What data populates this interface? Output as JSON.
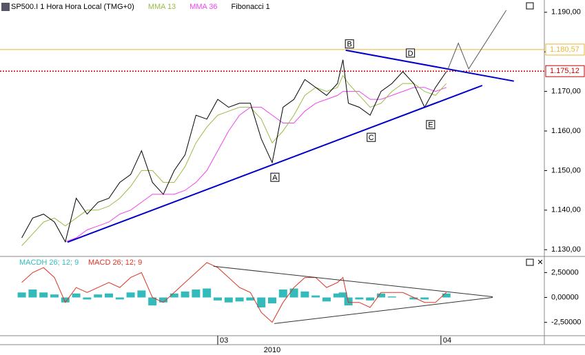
{
  "chart_data": [
    {
      "type": "line",
      "title": "SP500.I 1 Hora Hora Local (TMG+0)",
      "header_items": [
        "MMA 13",
        "MMA 36",
        "Fibonacci 1"
      ],
      "x": [
        4,
        6,
        8,
        10,
        12,
        14,
        16,
        18,
        20,
        22,
        24,
        26,
        28,
        30,
        32,
        34,
        36,
        38,
        40,
        42,
        44,
        46,
        48,
        50,
        52,
        54,
        56,
        58,
        60,
        62,
        63,
        64,
        66,
        68,
        70,
        72,
        74,
        76,
        78,
        80,
        82
      ],
      "series": [
        {
          "name": "SP500.I",
          "color": "#000000",
          "values": [
            1.133,
            1.138,
            1.139,
            1.137,
            1.132,
            1.143,
            1.139,
            1.142,
            1.143,
            1.147,
            1.149,
            1.155,
            1.147,
            1.144,
            1.15,
            1.154,
            1.164,
            1.163,
            1.168,
            1.166,
            1.167,
            1.167,
            1.158,
            1.152,
            1.166,
            1.168,
            1.173,
            1.171,
            1.169,
            1.172,
            1.178,
            1.167,
            1.166,
            1.164,
            1.17,
            1.172,
            1.175,
            1.172,
            1.166,
            1.171,
            1.175
          ]
        },
        {
          "name": "MMA 13",
          "color": "#99bb44",
          "values": [
            1.131,
            1.134,
            1.137,
            1.138,
            1.136,
            1.138,
            1.14,
            1.14,
            1.141,
            1.143,
            1.146,
            1.15,
            1.15,
            1.147,
            1.147,
            1.151,
            1.157,
            1.161,
            1.164,
            1.165,
            1.166,
            1.166,
            1.163,
            1.157,
            1.16,
            1.164,
            1.169,
            1.171,
            1.17,
            1.171,
            1.174,
            1.172,
            1.169,
            1.166,
            1.167,
            1.17,
            1.172,
            1.172,
            1.17,
            1.169,
            1.172
          ]
        },
        {
          "name": "MMA 36",
          "color": "#ee44ee",
          "values": [
            null,
            null,
            null,
            null,
            1.132,
            1.133,
            1.135,
            1.136,
            1.137,
            1.139,
            1.14,
            1.142,
            1.144,
            1.144,
            1.144,
            1.145,
            1.147,
            1.15,
            1.155,
            1.16,
            1.164,
            1.166,
            1.166,
            1.164,
            1.162,
            1.162,
            1.165,
            1.167,
            1.168,
            1.169,
            1.17,
            1.17,
            1.17,
            1.168,
            1.168,
            1.169,
            1.17,
            1.171,
            1.171,
            1.17,
            1.171
          ]
        }
      ],
      "xlim": [
        0,
        100
      ],
      "ylim": [
        1.1283,
        1.1931
      ],
      "yticks": [
        {
          "value": 1.13,
          "label": "1.130,00"
        },
        {
          "value": 1.14,
          "label": "1.140,00"
        },
        {
          "value": 1.15,
          "label": "1.150,00"
        },
        {
          "value": 1.16,
          "label": "1.160,00"
        },
        {
          "value": 1.17,
          "label": "1.170,00"
        },
        {
          "value": 1.18,
          "label": "1.180,00"
        },
        {
          "value": 1.19,
          "label": "1.190,00"
        }
      ],
      "price_lines": [
        {
          "value": 1.18057,
          "label": "1.180,57",
          "color": "#e8b830",
          "dotted": false
        },
        {
          "value": 1.17512,
          "label": "1.175,12",
          "color": "#cc0000",
          "dotted": true
        }
      ],
      "annotations": [
        {
          "text": "A",
          "x": 50.5,
          "y": 1.1483
        },
        {
          "text": "B",
          "x": 64.2,
          "y": 1.182
        },
        {
          "text": "C",
          "x": 68.2,
          "y": 1.1584
        },
        {
          "text": "D",
          "x": 75.4,
          "y": 1.1797
        },
        {
          "text": "E",
          "x": 79.1,
          "y": 1.1616
        }
      ],
      "trendlines": [
        {
          "x": [
            12.4,
            88.6
          ],
          "values": [
            1.1319,
            1.1715
          ],
          "color": "#0000cc"
        },
        {
          "x": [
            63.5,
            94.4
          ],
          "values": [
            1.1804,
            1.1726
          ],
          "color": "#0000cc"
        },
        {
          "x": [
            82.3,
            84.2,
            86.1,
            93.0
          ],
          "values": [
            1.1757,
            1.1822,
            1.1757,
            1.1905
          ],
          "color": "#555555"
        }
      ]
    },
    {
      "type": "macd",
      "x": [
        4,
        6,
        8,
        10,
        12,
        14,
        16,
        18,
        20,
        22,
        24,
        26,
        28,
        30,
        32,
        34,
        36,
        38,
        40,
        42,
        44,
        46,
        48,
        50,
        52,
        54,
        56,
        58,
        60,
        62,
        63,
        64,
        66,
        68,
        70,
        72,
        74,
        76,
        78,
        80,
        82
      ],
      "series": [
        {
          "name": "MACDH 26; 12; 9",
          "color": "#33bbbb",
          "kind": "histogram",
          "values": [
            0.5,
            0.8,
            0.5,
            0.3,
            -0.5,
            0.4,
            -0.2,
            0.3,
            0.4,
            -0.2,
            0.5,
            0.7,
            -0.8,
            -0.5,
            0.4,
            0.6,
            0.8,
            0.9,
            -0.3,
            -0.5,
            -0.4,
            -0.3,
            -1.0,
            -0.6,
            0.8,
            0.9,
            0.6,
            0.2,
            -0.4,
            0.4,
            0.5,
            -0.8,
            -0.2,
            -0.3,
            0.4,
            0.1,
            0.0,
            -0.2,
            -0.2,
            0.0,
            0.4
          ]
        },
        {
          "name": "MACD 26; 12; 9",
          "color": "#dd3322",
          "kind": "line",
          "values": [
            1.5,
            2.5,
            3.0,
            2.0,
            -0.5,
            1.0,
            0.5,
            1.0,
            1.5,
            1.0,
            2.0,
            2.5,
            0.0,
            -0.5,
            0.5,
            1.5,
            2.5,
            3.5,
            3.0,
            2.0,
            1.0,
            0.5,
            -1.5,
            -2.5,
            -0.5,
            1.0,
            2.0,
            2.0,
            1.0,
            1.5,
            2.0,
            -0.5,
            -0.5,
            -1.0,
            0.5,
            0.5,
            0.5,
            0.0,
            -0.5,
            -0.5,
            0.5
          ]
        }
      ],
      "xlim": [
        0,
        100
      ],
      "ylim": [
        -3.84,
        4.05
      ],
      "yticks": [
        {
          "value": 2.5,
          "label": "2,50000"
        },
        {
          "value": 0,
          "label": "0,00000"
        },
        {
          "value": -2.5,
          "label": "-2,50000"
        }
      ],
      "trendlines": [
        {
          "x": [
            39.2,
            90.5
          ],
          "values": [
            3.13,
            0.07
          ],
          "color": "#333333"
        },
        {
          "x": [
            50.4,
            90.5
          ],
          "values": [
            -2.62,
            0.0
          ],
          "color": "#333333"
        }
      ],
      "xticks": [
        {
          "value": 40,
          "label": "03"
        },
        {
          "value": 81,
          "label": "04"
        }
      ],
      "x_label": "2010"
    }
  ]
}
